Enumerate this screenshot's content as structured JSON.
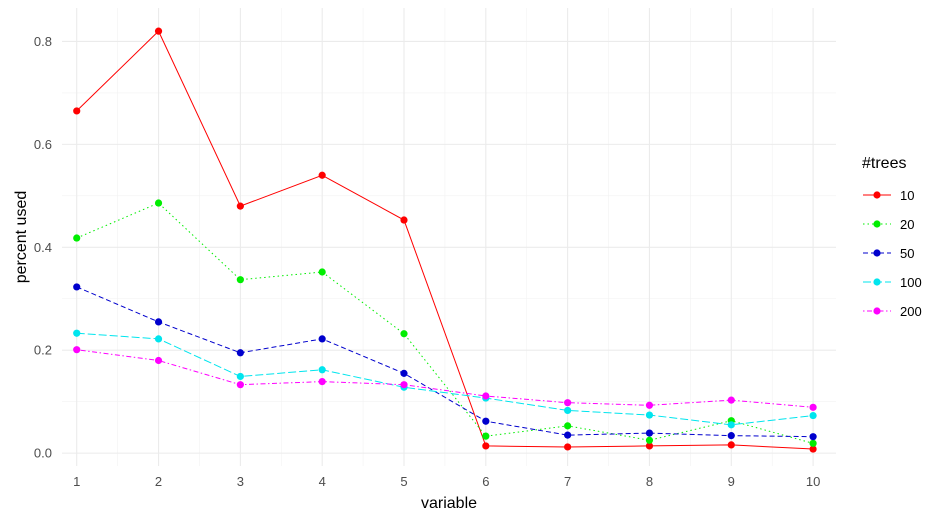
{
  "chart_data": {
    "type": "line",
    "xlabel": "variable",
    "ylabel": "percent used",
    "x": [
      1,
      2,
      3,
      4,
      5,
      6,
      7,
      8,
      9,
      10
    ],
    "xlim": [
      0.82,
      10.28
    ],
    "ylim": [
      -0.025,
      0.865
    ],
    "yticks": [
      0.0,
      0.2,
      0.4,
      0.6,
      0.8
    ],
    "ytick_labels": [
      "0.0",
      "0.2",
      "0.4",
      "0.6",
      "0.8"
    ],
    "xtick_labels": [
      "1",
      "2",
      "3",
      "4",
      "5",
      "6",
      "7",
      "8",
      "9",
      "10"
    ],
    "grid": true,
    "legend": {
      "title": "#trees",
      "position": "right"
    },
    "series": [
      {
        "name": "10",
        "color": "#ff0000",
        "dash": "solid",
        "values": [
          0.665,
          0.82,
          0.48,
          0.54,
          0.453,
          0.014,
          0.012,
          0.014,
          0.016,
          0.008
        ]
      },
      {
        "name": "20",
        "color": "#00ee00",
        "dash": "dotted",
        "values": [
          0.418,
          0.486,
          0.337,
          0.352,
          0.232,
          0.033,
          0.053,
          0.025,
          0.063,
          0.019
        ]
      },
      {
        "name": "50",
        "color": "#0000cd",
        "dash": "dashed",
        "values": [
          0.323,
          0.255,
          0.195,
          0.222,
          0.155,
          0.062,
          0.035,
          0.039,
          0.034,
          0.032
        ]
      },
      {
        "name": "100",
        "color": "#00e5ee",
        "dash": "longdash",
        "values": [
          0.233,
          0.222,
          0.149,
          0.162,
          0.128,
          0.107,
          0.083,
          0.074,
          0.055,
          0.073
        ]
      },
      {
        "name": "200",
        "color": "#ff00ff",
        "dash": "dotdash",
        "values": [
          0.201,
          0.18,
          0.133,
          0.139,
          0.133,
          0.111,
          0.098,
          0.093,
          0.103,
          0.089
        ]
      }
    ]
  }
}
